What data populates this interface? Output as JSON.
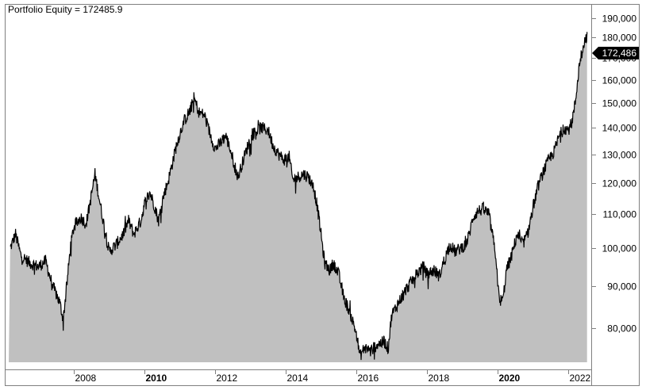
{
  "chart": {
    "title_label": "Portfolio Equity = 172485.9",
    "last_value_label": "172,486",
    "colors": {
      "fill": "#c0c0c0",
      "line": "#000000",
      "border": "#808080",
      "background": "#ffffff",
      "last_value_bg": "#000000",
      "last_value_text": "#ffffff"
    }
  },
  "chart_data": {
    "type": "area",
    "title": "Portfolio Equity = 172485.9",
    "xlabel": "",
    "ylabel": "",
    "y_scale": "log",
    "ylim": [
      72000,
      193000
    ],
    "y_ticks": [
      {
        "value": 190000,
        "label": "190,000"
      },
      {
        "value": 180000,
        "label": "180,000"
      },
      {
        "value": 170000,
        "label": "170,000"
      },
      {
        "value": 160000,
        "label": "160,000"
      },
      {
        "value": 150000,
        "label": "150,000"
      },
      {
        "value": 140000,
        "label": "140,000"
      },
      {
        "value": 130000,
        "label": "130,000"
      },
      {
        "value": 120000,
        "label": "120,000"
      },
      {
        "value": 110000,
        "label": "110,000"
      },
      {
        "value": 100000,
        "label": "100,000"
      },
      {
        "value": 90000,
        "label": "90,000"
      },
      {
        "value": 80000,
        "label": "80,000"
      }
    ],
    "x_ticks": [
      {
        "year": 2008,
        "label": "2008",
        "bold": false
      },
      {
        "year": 2010,
        "label": "2010",
        "bold": true
      },
      {
        "year": 2012,
        "label": "2012",
        "bold": false
      },
      {
        "year": 2014,
        "label": "2014",
        "bold": false
      },
      {
        "year": 2016,
        "label": "2016",
        "bold": false
      },
      {
        "year": 2018,
        "label": "2018",
        "bold": false
      },
      {
        "year": 2020,
        "label": "2020",
        "bold": true
      },
      {
        "year": 2022,
        "label": "2022",
        "bold": false
      }
    ],
    "grid": false,
    "legend": "none",
    "last_value": 172485.9,
    "series": [
      {
        "name": "Portfolio Equity",
        "points": [
          [
            2006.2,
            100000
          ],
          [
            2006.35,
            104000
          ],
          [
            2006.5,
            98000
          ],
          [
            2006.75,
            96000
          ],
          [
            2007.0,
            95000
          ],
          [
            2007.2,
            96500
          ],
          [
            2007.4,
            90000
          ],
          [
            2007.6,
            86000
          ],
          [
            2007.7,
            82000
          ],
          [
            2007.8,
            90000
          ],
          [
            2007.9,
            100000
          ],
          [
            2008.0,
            106000
          ],
          [
            2008.2,
            109000
          ],
          [
            2008.35,
            107000
          ],
          [
            2008.5,
            116000
          ],
          [
            2008.6,
            123000
          ],
          [
            2008.75,
            113000
          ],
          [
            2008.9,
            104000
          ],
          [
            2009.0,
            99000
          ],
          [
            2009.2,
            101000
          ],
          [
            2009.4,
            104000
          ],
          [
            2009.55,
            108000
          ],
          [
            2009.7,
            104000
          ],
          [
            2009.9,
            108000
          ],
          [
            2010.0,
            113000
          ],
          [
            2010.15,
            117000
          ],
          [
            2010.3,
            112000
          ],
          [
            2010.4,
            108000
          ],
          [
            2010.5,
            114000
          ],
          [
            2010.7,
            122000
          ],
          [
            2010.9,
            133000
          ],
          [
            2011.1,
            142000
          ],
          [
            2011.3,
            147000
          ],
          [
            2011.4,
            152000
          ],
          [
            2011.55,
            146000
          ],
          [
            2011.7,
            145000
          ],
          [
            2011.85,
            138000
          ],
          [
            2012.0,
            132000
          ],
          [
            2012.15,
            134000
          ],
          [
            2012.3,
            137000
          ],
          [
            2012.45,
            131000
          ],
          [
            2012.55,
            126000
          ],
          [
            2012.65,
            122000
          ],
          [
            2012.8,
            128000
          ],
          [
            2012.95,
            134000
          ],
          [
            2013.1,
            138000
          ],
          [
            2013.3,
            140000
          ],
          [
            2013.5,
            139000
          ],
          [
            2013.65,
            133000
          ],
          [
            2013.8,
            130000
          ],
          [
            2013.95,
            128000
          ],
          [
            2014.1,
            129000
          ],
          [
            2014.2,
            121000
          ],
          [
            2014.35,
            122000
          ],
          [
            2014.5,
            123000
          ],
          [
            2014.65,
            122000
          ],
          [
            2014.8,
            118000
          ],
          [
            2014.9,
            112000
          ],
          [
            2015.0,
            104000
          ],
          [
            2015.1,
            96000
          ],
          [
            2015.25,
            94000
          ],
          [
            2015.35,
            96000
          ],
          [
            2015.5,
            93000
          ],
          [
            2015.65,
            87000
          ],
          [
            2015.8,
            84000
          ],
          [
            2016.0,
            79000
          ],
          [
            2016.1,
            74000
          ],
          [
            2016.25,
            76000
          ],
          [
            2016.4,
            75000
          ],
          [
            2016.6,
            76500
          ],
          [
            2016.8,
            77000
          ],
          [
            2016.9,
            75500
          ],
          [
            2017.0,
            83000
          ],
          [
            2017.2,
            86000
          ],
          [
            2017.4,
            89000
          ],
          [
            2017.55,
            91000
          ],
          [
            2017.7,
            93000
          ],
          [
            2017.9,
            95000
          ],
          [
            2018.0,
            93000
          ],
          [
            2018.2,
            94000
          ],
          [
            2018.35,
            92500
          ],
          [
            2018.5,
            97000
          ],
          [
            2018.65,
            101000
          ],
          [
            2018.8,
            99000
          ],
          [
            2018.95,
            100000
          ],
          [
            2019.1,
            101000
          ],
          [
            2019.2,
            104000
          ],
          [
            2019.3,
            109000
          ],
          [
            2019.45,
            111000
          ],
          [
            2019.6,
            111500
          ],
          [
            2019.75,
            110000
          ],
          [
            2019.85,
            104000
          ],
          [
            2019.95,
            98000
          ],
          [
            2020.05,
            86000
          ],
          [
            2020.15,
            86500
          ],
          [
            2020.25,
            94000
          ],
          [
            2020.4,
            98000
          ],
          [
            2020.55,
            104000
          ],
          [
            2020.7,
            101000
          ],
          [
            2020.85,
            104000
          ],
          [
            2021.0,
            112000
          ],
          [
            2021.15,
            119000
          ],
          [
            2021.3,
            124000
          ],
          [
            2021.45,
            128000
          ],
          [
            2021.6,
            131000
          ],
          [
            2021.75,
            137000
          ],
          [
            2021.9,
            140000
          ],
          [
            2022.0,
            139000
          ],
          [
            2022.1,
            142000
          ],
          [
            2022.2,
            150000
          ],
          [
            2022.3,
            165000
          ],
          [
            2022.4,
            175000
          ],
          [
            2022.5,
            180000
          ],
          [
            2022.6,
            183000
          ],
          [
            2022.7,
            178000
          ],
          [
            2022.8,
            172486
          ]
        ]
      }
    ]
  }
}
